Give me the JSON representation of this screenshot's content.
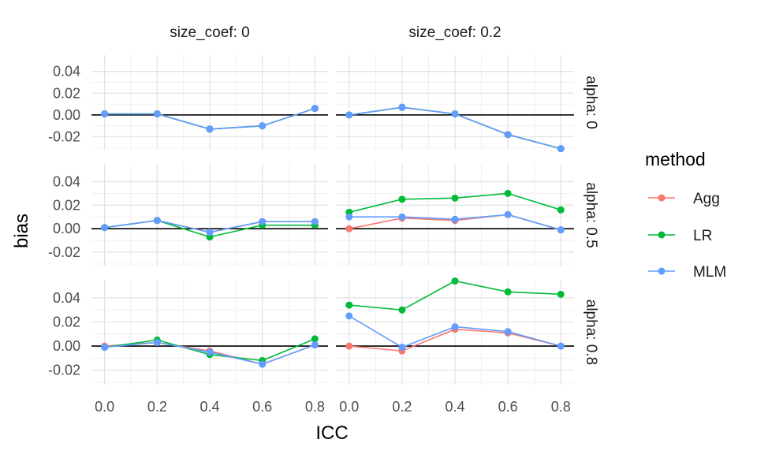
{
  "chart_data": {
    "type": "line",
    "xlabel": "ICC",
    "ylabel": "bias",
    "x": [
      0.0,
      0.2,
      0.4,
      0.6,
      0.8
    ],
    "x_tick_labels": [
      "0.0",
      "0.2",
      "0.4",
      "0.6",
      "0.8"
    ],
    "y_ticks": [
      -0.02,
      0.0,
      0.02,
      0.04
    ],
    "y_tick_labels": [
      "-0.02",
      "0.00",
      "0.02",
      "0.04"
    ],
    "ylim": [
      -0.032,
      0.055
    ],
    "xlim": [
      -0.05,
      0.85
    ],
    "grid": true,
    "reference_line_y": 0,
    "col_facet_labels": [
      "size_coef: 0",
      "size_coef: 0.2"
    ],
    "row_facet_labels": [
      "alpha: 0",
      "alpha: 0.5",
      "alpha: 0.8"
    ],
    "legend": {
      "title": "method",
      "position": "right",
      "entries": [
        {
          "name": "Agg",
          "color": "#F8766D"
        },
        {
          "name": "LR",
          "color": "#00BA38"
        },
        {
          "name": "MLM",
          "color": "#619CFF"
        }
      ]
    },
    "panels": [
      {
        "row": 0,
        "col": 0,
        "series": [
          {
            "name": "Agg",
            "values": [
              0.001,
              0.001,
              -0.013,
              -0.01,
              0.006
            ]
          },
          {
            "name": "LR",
            "values": [
              0.001,
              0.001,
              -0.013,
              -0.01,
              0.006
            ]
          },
          {
            "name": "MLM",
            "values": [
              0.001,
              0.001,
              -0.013,
              -0.01,
              0.006
            ]
          }
        ]
      },
      {
        "row": 0,
        "col": 1,
        "series": [
          {
            "name": "Agg",
            "values": [
              0.0,
              0.007,
              0.001,
              -0.018,
              -0.031
            ]
          },
          {
            "name": "LR",
            "values": [
              0.0,
              0.007,
              0.001,
              -0.018,
              -0.031
            ]
          },
          {
            "name": "MLM",
            "values": [
              0.0,
              0.007,
              0.001,
              -0.018,
              -0.031
            ]
          }
        ]
      },
      {
        "row": 1,
        "col": 0,
        "series": [
          {
            "name": "Agg",
            "values": [
              0.001,
              0.007,
              -0.003,
              0.006,
              0.006
            ]
          },
          {
            "name": "LR",
            "values": [
              0.001,
              0.007,
              -0.007,
              0.003,
              0.003
            ]
          },
          {
            "name": "MLM",
            "values": [
              0.001,
              0.007,
              -0.003,
              0.006,
              0.006
            ]
          }
        ]
      },
      {
        "row": 1,
        "col": 1,
        "series": [
          {
            "name": "Agg",
            "values": [
              0.0,
              0.009,
              0.007,
              0.012,
              -0.001
            ]
          },
          {
            "name": "LR",
            "values": [
              0.014,
              0.025,
              0.026,
              0.03,
              0.016
            ]
          },
          {
            "name": "MLM",
            "values": [
              0.01,
              0.01,
              0.008,
              0.012,
              -0.001
            ]
          }
        ]
      },
      {
        "row": 2,
        "col": 0,
        "series": [
          {
            "name": "Agg",
            "values": [
              0.0,
              0.003,
              -0.004,
              -0.015,
              0.001
            ]
          },
          {
            "name": "LR",
            "values": [
              -0.001,
              0.005,
              -0.007,
              -0.012,
              0.006
            ]
          },
          {
            "name": "MLM",
            "values": [
              -0.001,
              0.003,
              -0.005,
              -0.015,
              0.001
            ]
          }
        ]
      },
      {
        "row": 2,
        "col": 1,
        "series": [
          {
            "name": "Agg",
            "values": [
              0.0,
              -0.004,
              0.014,
              0.011,
              0.0
            ]
          },
          {
            "name": "LR",
            "values": [
              0.034,
              0.03,
              0.054,
              0.045,
              0.043
            ]
          },
          {
            "name": "MLM",
            "values": [
              0.025,
              -0.001,
              0.016,
              0.012,
              0.0
            ]
          }
        ]
      }
    ]
  }
}
